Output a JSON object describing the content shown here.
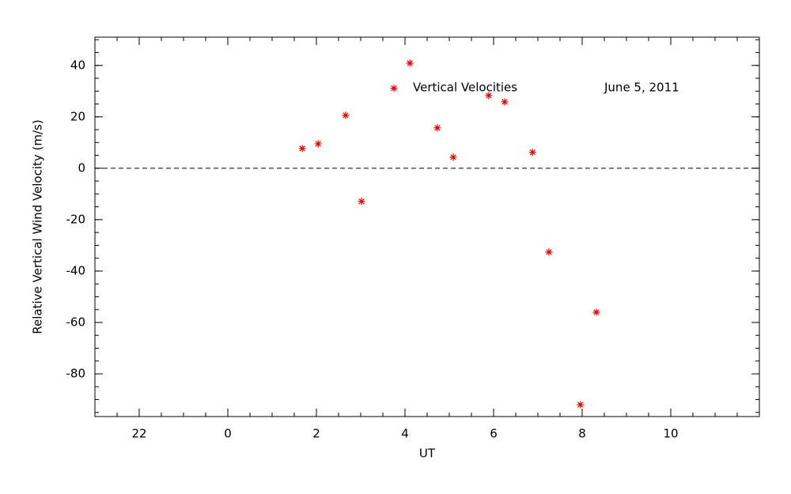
{
  "chart_data": {
    "type": "scatter",
    "x_label": "UT",
    "y_label": "Relative Vertical Wind Velocity (m/s)",
    "annotations": [
      "Vertical Velocities",
      "June 5, 2011"
    ],
    "series": [
      {
        "name": "Vertical Velocities",
        "color": "#e00000",
        "x": [
          1.68,
          2.04,
          2.66,
          3.02,
          3.75,
          4.11,
          4.73,
          5.09,
          5.89,
          6.25,
          6.88,
          7.25,
          7.96,
          8.32
        ],
        "values": [
          7.7,
          9.5,
          20.6,
          -12.9,
          31.1,
          40.9,
          15.7,
          4.3,
          28.3,
          25.8,
          6.2,
          -32.6,
          -92.0,
          -56.0
        ]
      }
    ],
    "xlim": [
      -3,
      12
    ],
    "xticks": [
      {
        "value": -2,
        "label": "22"
      },
      0,
      2,
      4,
      6,
      8,
      10
    ],
    "ylim": [
      -96.6,
      51
    ],
    "yticks": [
      -80,
      -60,
      -40,
      -20,
      0,
      20,
      40
    ],
    "zero_line": true
  }
}
